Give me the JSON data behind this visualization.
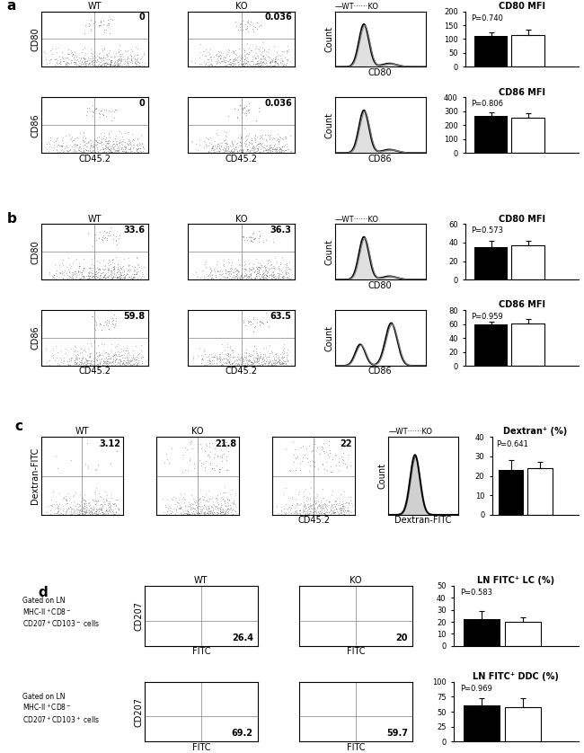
{
  "panel_a": {
    "scatter1_label": "0",
    "scatter2_label": "0.036",
    "ylabel1": "CD80",
    "scatter3_label": "0",
    "scatter4_label": "0.036",
    "ylabel2": "CD86",
    "xlabel": "CD45.2",
    "hist1_xlabel": "CD80",
    "hist2_xlabel": "CD86",
    "bar1_title": "CD80 MFI",
    "bar1_pval": "P=0.740",
    "bar1_wt": 110,
    "bar1_wt_err": 15,
    "bar1_ko": 115,
    "bar1_ko_err": 18,
    "bar1_ylim": [
      0,
      200
    ],
    "bar1_yticks": [
      0,
      50,
      100,
      150,
      200
    ],
    "bar2_title": "CD86 MFI",
    "bar2_pval": "P=0.806",
    "bar2_wt": 265,
    "bar2_wt_err": 25,
    "bar2_ko": 255,
    "bar2_ko_err": 30,
    "bar2_ylim": [
      0,
      400
    ],
    "bar2_yticks": [
      0,
      100,
      200,
      300,
      400
    ]
  },
  "panel_b": {
    "scatter1_label": "33.6",
    "scatter2_label": "36.3",
    "ylabel1": "CD80",
    "scatter3_label": "59.8",
    "scatter4_label": "63.5",
    "ylabel2": "CD86",
    "xlabel": "CD45.2",
    "hist1_xlabel": "CD80",
    "hist2_xlabel": "CD86",
    "bar1_title": "CD80 MFI",
    "bar1_pval": "P=0.573",
    "bar1_wt": 35,
    "bar1_wt_err": 7,
    "bar1_ko": 37,
    "bar1_ko_err": 5,
    "bar1_ylim": [
      0,
      60
    ],
    "bar1_yticks": [
      0,
      20,
      40,
      60
    ],
    "bar2_title": "CD86 MFI",
    "bar2_pval": "P=0.959",
    "bar2_wt": 60,
    "bar2_wt_err": 3,
    "bar2_ko": 61,
    "bar2_ko_err": 6,
    "bar2_ylim": [
      0,
      80
    ],
    "bar2_yticks": [
      0,
      20,
      40,
      60,
      80
    ]
  },
  "panel_c": {
    "scatter1_label": "3.12",
    "scatter2_label": "21.8",
    "scatter3_label": "22",
    "ylabel": "Dextran-FITC",
    "xlabel": "CD45.2",
    "hist_xlabel": "Dextran-FITC",
    "bar_title": "Dextran⁺ (%)",
    "bar_pval": "P=0.641",
    "bar_wt": 23,
    "bar_wt_err": 5,
    "bar_ko": 24,
    "bar_ko_err": 3,
    "bar_ylim": [
      0,
      40
    ],
    "bar_yticks": [
      0,
      10,
      20,
      30,
      40
    ]
  },
  "panel_d": {
    "scatter1_label": "26.4",
    "scatter2_label": "20",
    "ylabel1": "CD207",
    "xlabel1": "FITC",
    "scatter3_label": "69.2",
    "scatter4_label": "59.7",
    "ylabel2": "CD207",
    "xlabel2": "FITC",
    "bar1_title": "LN FITC⁺ LC (%)",
    "bar1_pval": "P=0.583",
    "bar1_wt": 22,
    "bar1_wt_err": 7,
    "bar1_ko": 20,
    "bar1_ko_err": 4,
    "bar1_ylim": [
      0,
      50
    ],
    "bar1_yticks": [
      0,
      10,
      20,
      30,
      40,
      50
    ],
    "bar2_title": "LN FITC⁺ DDC (%)",
    "bar2_pval": "P=0.969",
    "bar2_wt": 60,
    "bar2_wt_err": 12,
    "bar2_ko": 58,
    "bar2_ko_err": 15,
    "bar2_ylim": [
      0,
      100
    ],
    "bar2_yticks": [
      0,
      25,
      50,
      75,
      100
    ]
  },
  "wt_color": "black",
  "ko_color": "white",
  "bar_width": 0.35,
  "legend_wt": "WT",
  "legend_ko": "KO"
}
